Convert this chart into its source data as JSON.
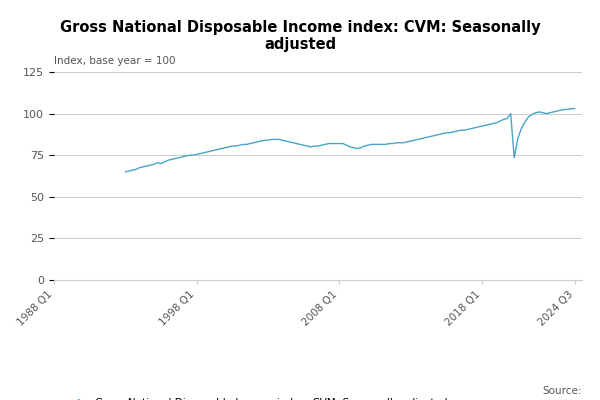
{
  "title": "Gross National Disposable Income index: CVM: Seasonally\nadjusted",
  "ylabel": "Index, base year = 100",
  "line_color": "#4BA3C7",
  "line_label": "Gross National Disposable Income index: CVM: Seasonally adjusted",
  "ylim": [
    0,
    125
  ],
  "yticks": [
    0,
    25,
    50,
    75,
    100,
    125
  ],
  "xtick_labels": [
    "1988 Q1",
    "1998 Q1",
    "2008 Q1",
    "2018 Q1",
    "2024 Q3"
  ],
  "xtick_positions": [
    1988.0,
    1998.0,
    2008.0,
    2018.0,
    2024.5
  ],
  "xlim": [
    1988.0,
    2025.0
  ],
  "source_text": "Source:",
  "data": [
    [
      1988.0,
      null
    ],
    [
      1988.25,
      null
    ],
    [
      1988.5,
      null
    ],
    [
      1988.75,
      null
    ],
    [
      1989.0,
      null
    ],
    [
      1989.25,
      null
    ],
    [
      1989.5,
      null
    ],
    [
      1989.75,
      null
    ],
    [
      1990.0,
      null
    ],
    [
      1990.25,
      null
    ],
    [
      1990.5,
      null
    ],
    [
      1990.75,
      null
    ],
    [
      1991.0,
      null
    ],
    [
      1991.25,
      null
    ],
    [
      1991.5,
      null
    ],
    [
      1991.75,
      null
    ],
    [
      1992.0,
      null
    ],
    [
      1992.25,
      null
    ],
    [
      1992.5,
      null
    ],
    [
      1992.75,
      null
    ],
    [
      1993.0,
      65.0
    ],
    [
      1993.25,
      65.5
    ],
    [
      1993.5,
      66.0
    ],
    [
      1993.75,
      66.5
    ],
    [
      1994.0,
      67.5
    ],
    [
      1994.25,
      68.0
    ],
    [
      1994.5,
      68.5
    ],
    [
      1994.75,
      69.0
    ],
    [
      1995.0,
      69.5
    ],
    [
      1995.25,
      70.5
    ],
    [
      1995.5,
      70.0
    ],
    [
      1995.75,
      71.0
    ],
    [
      1996.0,
      72.0
    ],
    [
      1996.25,
      72.5
    ],
    [
      1996.5,
      73.0
    ],
    [
      1996.75,
      73.5
    ],
    [
      1997.0,
      74.0
    ],
    [
      1997.25,
      74.5
    ],
    [
      1997.5,
      75.0
    ],
    [
      1997.75,
      75.0
    ],
    [
      1998.0,
      75.5
    ],
    [
      1998.25,
      76.0
    ],
    [
      1998.5,
      76.5
    ],
    [
      1998.75,
      77.0
    ],
    [
      1999.0,
      77.5
    ],
    [
      1999.25,
      78.0
    ],
    [
      1999.5,
      78.5
    ],
    [
      1999.75,
      79.0
    ],
    [
      2000.0,
      79.5
    ],
    [
      2000.25,
      80.0
    ],
    [
      2000.5,
      80.5
    ],
    [
      2000.75,
      80.5
    ],
    [
      2001.0,
      81.0
    ],
    [
      2001.25,
      81.5
    ],
    [
      2001.5,
      81.5
    ],
    [
      2001.75,
      82.0
    ],
    [
      2002.0,
      82.5
    ],
    [
      2002.25,
      83.0
    ],
    [
      2002.5,
      83.5
    ],
    [
      2002.75,
      84.0
    ],
    [
      2003.0,
      84.0
    ],
    [
      2003.25,
      84.5
    ],
    [
      2003.5,
      84.5
    ],
    [
      2003.75,
      84.5
    ],
    [
      2004.0,
      84.0
    ],
    [
      2004.25,
      83.5
    ],
    [
      2004.5,
      83.0
    ],
    [
      2004.75,
      82.5
    ],
    [
      2005.0,
      82.0
    ],
    [
      2005.25,
      81.5
    ],
    [
      2005.5,
      81.0
    ],
    [
      2005.75,
      80.5
    ],
    [
      2006.0,
      80.0
    ],
    [
      2006.25,
      80.5
    ],
    [
      2006.5,
      80.5
    ],
    [
      2006.75,
      81.0
    ],
    [
      2007.0,
      81.5
    ],
    [
      2007.25,
      82.0
    ],
    [
      2007.5,
      82.0
    ],
    [
      2007.75,
      82.0
    ],
    [
      2008.0,
      82.0
    ],
    [
      2008.25,
      82.0
    ],
    [
      2008.5,
      81.0
    ],
    [
      2008.75,
      80.0
    ],
    [
      2009.0,
      79.5
    ],
    [
      2009.25,
      79.0
    ],
    [
      2009.5,
      79.5
    ],
    [
      2009.75,
      80.5
    ],
    [
      2010.0,
      81.0
    ],
    [
      2010.25,
      81.5
    ],
    [
      2010.5,
      81.5
    ],
    [
      2010.75,
      81.5
    ],
    [
      2011.0,
      81.5
    ],
    [
      2011.25,
      81.5
    ],
    [
      2011.5,
      82.0
    ],
    [
      2011.75,
      82.0
    ],
    [
      2012.0,
      82.5
    ],
    [
      2012.25,
      82.5
    ],
    [
      2012.5,
      82.5
    ],
    [
      2012.75,
      83.0
    ],
    [
      2013.0,
      83.5
    ],
    [
      2013.25,
      84.0
    ],
    [
      2013.5,
      84.5
    ],
    [
      2013.75,
      85.0
    ],
    [
      2014.0,
      85.5
    ],
    [
      2014.25,
      86.0
    ],
    [
      2014.5,
      86.5
    ],
    [
      2014.75,
      87.0
    ],
    [
      2015.0,
      87.5
    ],
    [
      2015.25,
      88.0
    ],
    [
      2015.5,
      88.5
    ],
    [
      2015.75,
      88.5
    ],
    [
      2016.0,
      89.0
    ],
    [
      2016.25,
      89.5
    ],
    [
      2016.5,
      90.0
    ],
    [
      2016.75,
      90.0
    ],
    [
      2017.0,
      90.5
    ],
    [
      2017.25,
      91.0
    ],
    [
      2017.5,
      91.5
    ],
    [
      2017.75,
      92.0
    ],
    [
      2018.0,
      92.5
    ],
    [
      2018.25,
      93.0
    ],
    [
      2018.5,
      93.5
    ],
    [
      2018.75,
      94.0
    ],
    [
      2019.0,
      94.5
    ],
    [
      2019.25,
      95.5
    ],
    [
      2019.5,
      96.5
    ],
    [
      2019.75,
      97.0
    ],
    [
      2020.0,
      100.0
    ],
    [
      2020.25,
      73.5
    ],
    [
      2020.5,
      85.0
    ],
    [
      2020.75,
      91.0
    ],
    [
      2021.0,
      95.0
    ],
    [
      2021.25,
      98.0
    ],
    [
      2021.5,
      99.5
    ],
    [
      2021.75,
      100.5
    ],
    [
      2022.0,
      101.0
    ],
    [
      2022.25,
      100.5
    ],
    [
      2022.5,
      100.0
    ],
    [
      2022.75,
      100.5
    ],
    [
      2023.0,
      101.0
    ],
    [
      2023.25,
      101.5
    ],
    [
      2023.5,
      102.0
    ],
    [
      2023.75,
      102.5
    ],
    [
      2024.0,
      102.5
    ],
    [
      2024.25,
      103.0
    ],
    [
      2024.5,
      103.0
    ]
  ]
}
